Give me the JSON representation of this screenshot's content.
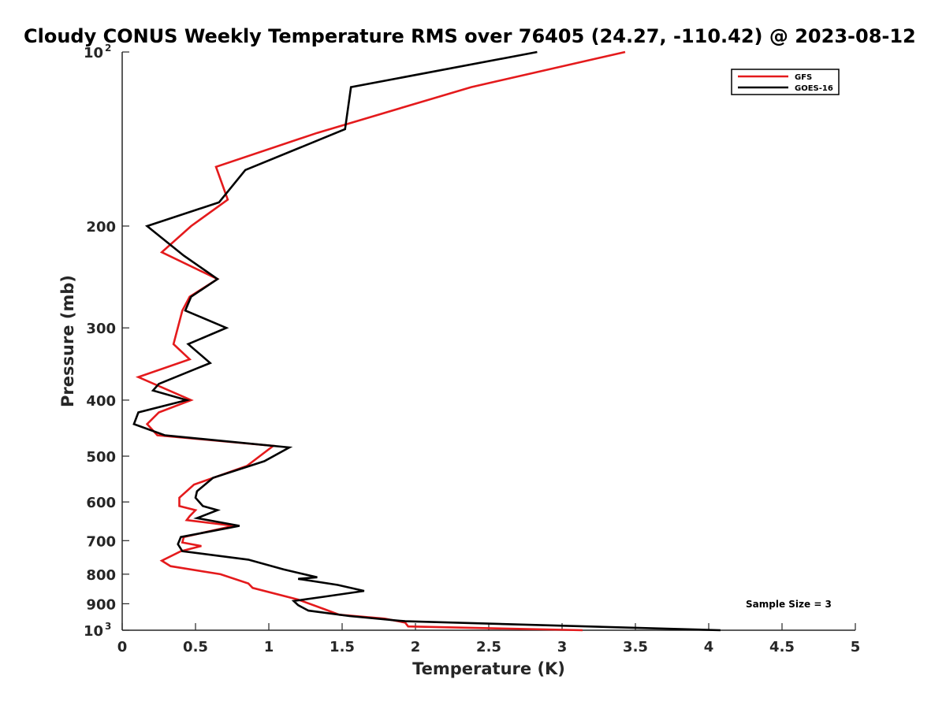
{
  "chart_data": {
    "type": "line",
    "title": "Cloudy CONUS Weekly Temperature RMS over 76405 (24.27, -110.42) @ 2023-08-12",
    "xlabel": "Temperature (K)",
    "ylabel": "Pressure (mb)",
    "xlim": [
      0,
      5
    ],
    "ylim": [
      1000,
      100
    ],
    "yscale": "log",
    "x_ticks": [
      {
        "value": 0,
        "label": "0"
      },
      {
        "value": 0.5,
        "label": "0.5"
      },
      {
        "value": 1,
        "label": "1"
      },
      {
        "value": 1.5,
        "label": "1.5"
      },
      {
        "value": 2,
        "label": "2"
      },
      {
        "value": 2.5,
        "label": "2.5"
      },
      {
        "value": 3,
        "label": "3"
      },
      {
        "value": 3.5,
        "label": "3.5"
      },
      {
        "value": 4,
        "label": "4"
      },
      {
        "value": 4.5,
        "label": "4.5"
      },
      {
        "value": 5,
        "label": "5"
      }
    ],
    "y_ticks": [
      {
        "value": 100,
        "base": "10",
        "sup": "2"
      },
      {
        "value": 200,
        "base": "200",
        "sup": ""
      },
      {
        "value": 300,
        "base": "300",
        "sup": ""
      },
      {
        "value": 400,
        "base": "400",
        "sup": ""
      },
      {
        "value": 500,
        "base": "500",
        "sup": ""
      },
      {
        "value": 600,
        "base": "600",
        "sup": ""
      },
      {
        "value": 700,
        "base": "700",
        "sup": ""
      },
      {
        "value": 800,
        "base": "800",
        "sup": ""
      },
      {
        "value": 900,
        "base": "900",
        "sup": ""
      },
      {
        "value": 1000,
        "base": "10",
        "sup": "3"
      }
    ],
    "legend_position": "top-right",
    "annotation": "Sample Size = 3",
    "series": [
      {
        "name": "GFS",
        "color": "#e41a1c",
        "points": [
          [
            3.43,
            100
          ],
          [
            2.38,
            115
          ],
          [
            1.63,
            131
          ],
          [
            1.33,
            138
          ],
          [
            0.64,
            158
          ],
          [
            0.72,
            180
          ],
          [
            0.47,
            200
          ],
          [
            0.27,
            222
          ],
          [
            0.65,
            247
          ],
          [
            0.46,
            265
          ],
          [
            0.41,
            280
          ],
          [
            0.35,
            320
          ],
          [
            0.46,
            340
          ],
          [
            0.11,
            365
          ],
          [
            0.47,
            400
          ],
          [
            0.25,
            420
          ],
          [
            0.17,
            440
          ],
          [
            0.24,
            460
          ],
          [
            1.03,
            480
          ],
          [
            0.85,
            520
          ],
          [
            0.49,
            560
          ],
          [
            0.39,
            590
          ],
          [
            0.39,
            610
          ],
          [
            0.5,
            620
          ],
          [
            0.46,
            635
          ],
          [
            0.44,
            645
          ],
          [
            0.76,
            660
          ],
          [
            0.42,
            690
          ],
          [
            0.41,
            705
          ],
          [
            0.54,
            715
          ],
          [
            0.4,
            730
          ],
          [
            0.27,
            758
          ],
          [
            0.33,
            775
          ],
          [
            0.67,
            800
          ],
          [
            0.86,
            830
          ],
          [
            0.89,
            845
          ],
          [
            1.2,
            885
          ],
          [
            1.38,
            920
          ],
          [
            1.48,
            940
          ],
          [
            1.79,
            955
          ],
          [
            1.93,
            970
          ],
          [
            1.95,
            985
          ],
          [
            3.14,
            1000
          ]
        ]
      },
      {
        "name": "GOES-16",
        "color": "#000000",
        "points": [
          [
            2.83,
            100
          ],
          [
            1.56,
            115
          ],
          [
            1.52,
            136
          ],
          [
            0.84,
            160
          ],
          [
            0.66,
            182
          ],
          [
            0.17,
            200
          ],
          [
            0.42,
            225
          ],
          [
            0.65,
            247
          ],
          [
            0.47,
            265
          ],
          [
            0.43,
            280
          ],
          [
            0.71,
            300
          ],
          [
            0.45,
            320
          ],
          [
            0.6,
            345
          ],
          [
            0.25,
            375
          ],
          [
            0.21,
            385
          ],
          [
            0.44,
            400
          ],
          [
            0.11,
            420
          ],
          [
            0.08,
            440
          ],
          [
            0.29,
            460
          ],
          [
            1.14,
            483
          ],
          [
            0.97,
            510
          ],
          [
            0.62,
            545
          ],
          [
            0.51,
            575
          ],
          [
            0.5,
            590
          ],
          [
            0.55,
            610
          ],
          [
            0.65,
            620
          ],
          [
            0.51,
            640
          ],
          [
            0.8,
            660
          ],
          [
            0.4,
            690
          ],
          [
            0.38,
            710
          ],
          [
            0.41,
            730
          ],
          [
            0.86,
            755
          ],
          [
            1.1,
            785
          ],
          [
            1.33,
            810
          ],
          [
            1.2,
            815
          ],
          [
            1.47,
            835
          ],
          [
            1.65,
            855
          ],
          [
            1.38,
            875
          ],
          [
            1.17,
            890
          ],
          [
            1.2,
            905
          ],
          [
            1.27,
            925
          ],
          [
            1.55,
            945
          ],
          [
            1.93,
            965
          ],
          [
            4.08,
            1000
          ]
        ]
      }
    ]
  }
}
